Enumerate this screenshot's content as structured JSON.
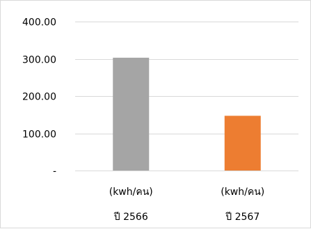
{
  "chart_data": {
    "type": "bar",
    "categories": [
      {
        "unit": "(kwh/คน)",
        "year": "ปี 2566"
      },
      {
        "unit": "(kwh/คน)",
        "year": "ปี 2567"
      }
    ],
    "values": [
      303,
      147
    ],
    "colors": [
      "#a5a5a5",
      "#ed7d31"
    ],
    "ylim": [
      0,
      400
    ],
    "y_ticks": [
      {
        "value": 0,
        "label": "-"
      },
      {
        "value": 100,
        "label": "100.00"
      },
      {
        "value": 200,
        "label": "200.00"
      },
      {
        "value": 300,
        "label": "300.00"
      },
      {
        "value": 400,
        "label": "400.00"
      }
    ],
    "grid": true,
    "legend": "none",
    "title": "",
    "xlabel": "",
    "ylabel": ""
  }
}
